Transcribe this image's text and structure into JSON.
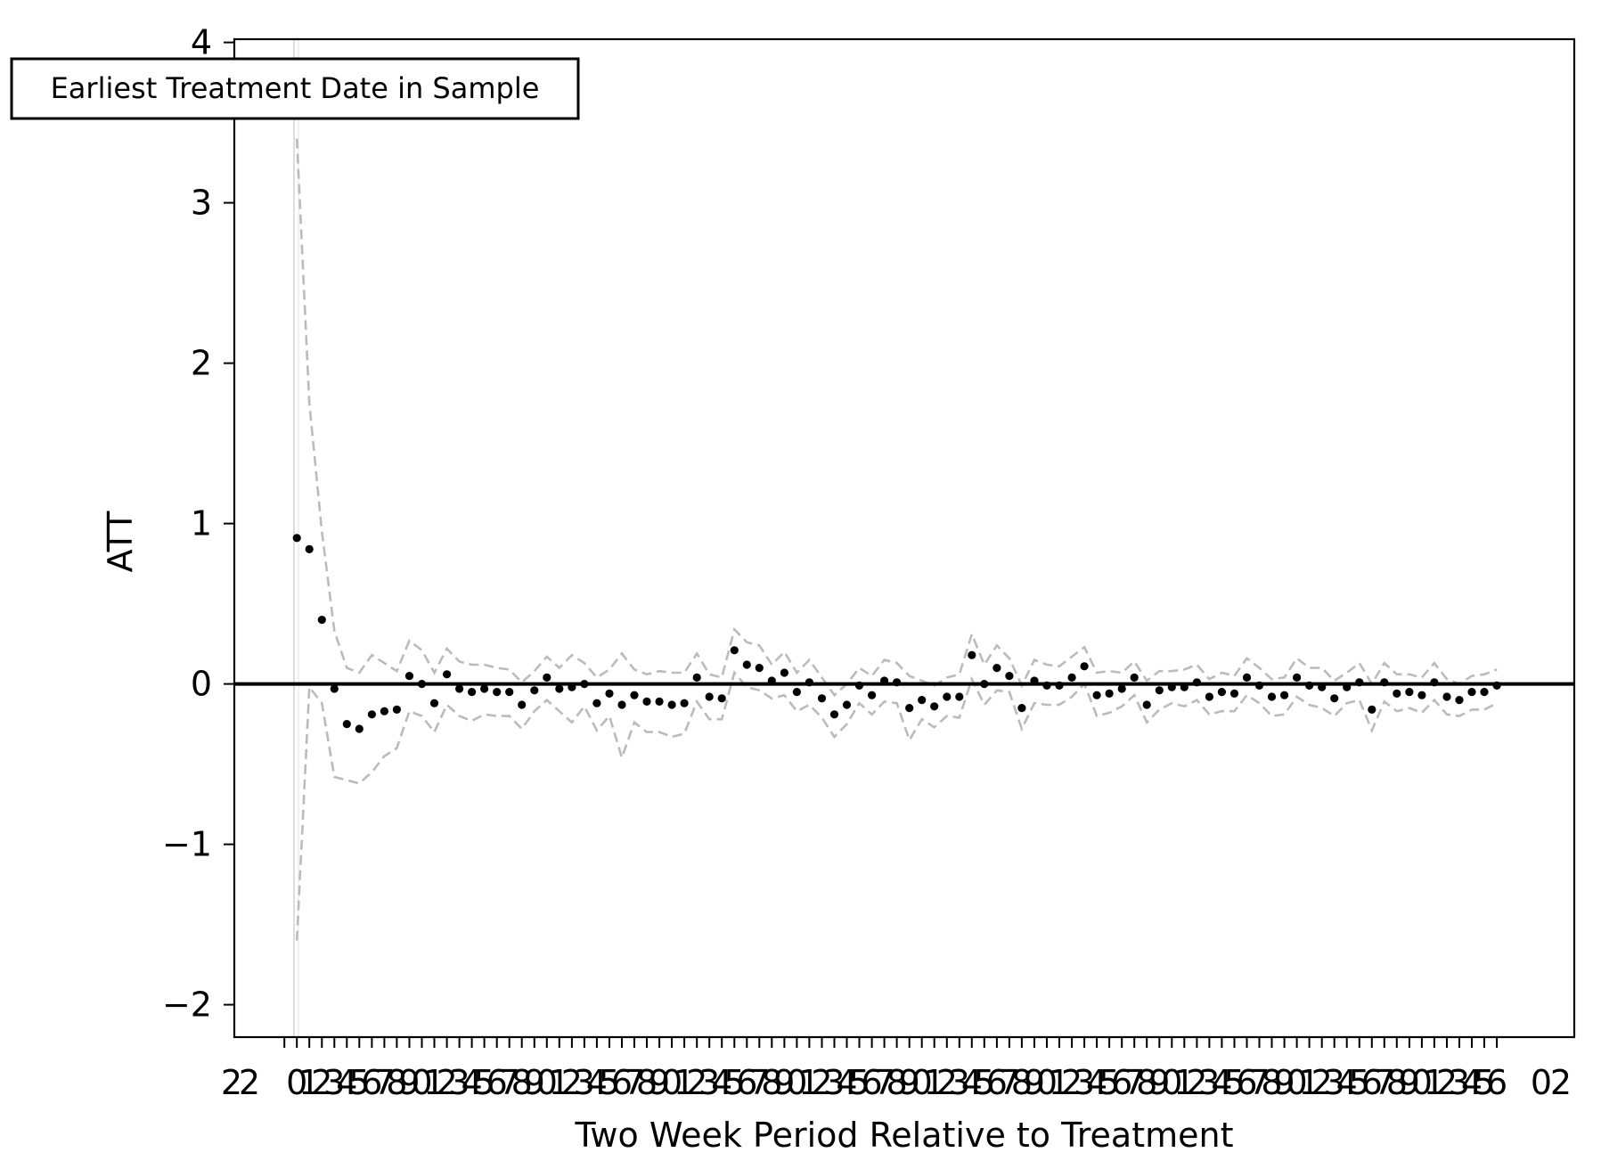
{
  "chart_data": {
    "type": "scatter",
    "title": "",
    "xlabel": "Two Week Period Relative to Treatment",
    "ylabel": "ATT",
    "ylim": [
      -2.2,
      4.0
    ],
    "xlim": [
      0,
      104
    ],
    "y_ticks": [
      {
        "value": 4,
        "label": "4"
      },
      {
        "value": 3,
        "label": "3"
      },
      {
        "value": 2,
        "label": "2"
      },
      {
        "value": 1,
        "label": "1"
      },
      {
        "value": 0,
        "label": "0"
      },
      {
        "value": -1,
        "label": "−1"
      },
      {
        "value": -2,
        "label": "−2"
      }
    ],
    "x_ticks_note": "overlapping illegible integer tick labels",
    "x_tick_labels_visible": [
      "2",
      "2",
      "0",
      "2"
    ],
    "reference_line_y": 0,
    "treatment_marker_label": "Earliest Treatment Date in Sample",
    "legend": "none",
    "grid": false,
    "colors": {
      "points": "#000000",
      "ci": "#bbbbbb",
      "zero_line": "#000000",
      "vline": "#dddddd"
    },
    "points": {
      "y": [
        0.91,
        0.84,
        0.4,
        -0.03,
        -0.25,
        -0.28,
        -0.19,
        -0.17,
        -0.16,
        0.05,
        0.0,
        -0.12,
        0.06,
        -0.03,
        -0.05,
        -0.03,
        -0.05,
        -0.05,
        -0.13,
        -0.04,
        0.04,
        -0.03,
        -0.02,
        0.0,
        -0.12,
        -0.06,
        -0.13,
        -0.07,
        -0.11,
        -0.11,
        -0.13,
        -0.12,
        0.04,
        -0.08,
        -0.09,
        0.21,
        0.12,
        0.1,
        0.02,
        0.07,
        -0.05,
        0.01,
        -0.09,
        -0.19,
        -0.13,
        -0.01,
        -0.07,
        0.02,
        0.01,
        -0.15,
        -0.1,
        -0.14,
        -0.08,
        -0.08,
        0.18,
        0.0,
        0.1,
        0.05,
        -0.15,
        0.02,
        -0.01,
        -0.01,
        0.04,
        0.11,
        -0.07,
        -0.06,
        -0.03,
        0.04,
        -0.13,
        -0.04,
        -0.02,
        -0.02,
        0.01,
        -0.08,
        -0.05,
        -0.06,
        0.04,
        -0.01,
        -0.08,
        -0.07,
        0.04,
        -0.01,
        -0.02,
        -0.09,
        -0.02,
        0.01,
        -0.16,
        0.01,
        -0.06,
        -0.05,
        -0.07,
        0.01,
        -0.08,
        -0.1,
        -0.05,
        -0.05,
        -0.01
      ],
      "ci_upper": [
        3.4,
        1.75,
        0.95,
        0.33,
        0.1,
        0.07,
        0.18,
        0.13,
        0.08,
        0.27,
        0.21,
        0.07,
        0.22,
        0.14,
        0.12,
        0.12,
        0.1,
        0.09,
        0.01,
        0.08,
        0.17,
        0.1,
        0.18,
        0.13,
        0.04,
        0.09,
        0.19,
        0.09,
        0.06,
        0.08,
        0.07,
        0.07,
        0.19,
        0.06,
        0.04,
        0.34,
        0.26,
        0.24,
        0.12,
        0.2,
        0.07,
        0.15,
        0.04,
        -0.07,
        -0.0,
        0.1,
        0.05,
        0.15,
        0.13,
        0.05,
        0.02,
        -0.01,
        0.04,
        0.06,
        0.31,
        0.12,
        0.24,
        0.16,
        -0.01,
        0.15,
        0.12,
        0.11,
        0.17,
        0.23,
        0.07,
        0.08,
        0.07,
        0.14,
        0.02,
        0.08,
        0.08,
        0.09,
        0.12,
        0.03,
        0.07,
        0.05,
        0.16,
        0.1,
        0.03,
        0.04,
        0.16,
        0.1,
        0.1,
        0.02,
        0.07,
        0.13,
        0.0,
        0.13,
        0.06,
        0.06,
        0.04,
        0.13,
        0.03,
        0.0,
        0.05,
        0.06,
        0.09
      ],
      "ci_lower": [
        -1.6,
        -0.02,
        -0.12,
        -0.58,
        -0.6,
        -0.62,
        -0.55,
        -0.45,
        -0.4,
        -0.17,
        -0.2,
        -0.3,
        -0.13,
        -0.2,
        -0.23,
        -0.19,
        -0.2,
        -0.2,
        -0.28,
        -0.17,
        -0.1,
        -0.17,
        -0.24,
        -0.14,
        -0.29,
        -0.2,
        -0.46,
        -0.24,
        -0.3,
        -0.3,
        -0.33,
        -0.31,
        -0.11,
        -0.22,
        -0.22,
        0.07,
        -0.02,
        -0.04,
        -0.09,
        -0.07,
        -0.17,
        -0.13,
        -0.21,
        -0.33,
        -0.25,
        -0.12,
        -0.19,
        -0.11,
        -0.12,
        -0.35,
        -0.22,
        -0.27,
        -0.2,
        -0.21,
        0.03,
        -0.13,
        -0.04,
        -0.05,
        -0.28,
        -0.12,
        -0.13,
        -0.13,
        -0.08,
        0.0,
        -0.2,
        -0.18,
        -0.14,
        -0.07,
        -0.24,
        -0.16,
        -0.12,
        -0.14,
        -0.1,
        -0.19,
        -0.17,
        -0.17,
        -0.07,
        -0.12,
        -0.2,
        -0.19,
        -0.08,
        -0.13,
        -0.15,
        -0.2,
        -0.12,
        -0.1,
        -0.29,
        -0.11,
        -0.17,
        -0.15,
        -0.18,
        -0.1,
        -0.19,
        -0.2,
        -0.16,
        -0.16,
        -0.12
      ]
    }
  }
}
